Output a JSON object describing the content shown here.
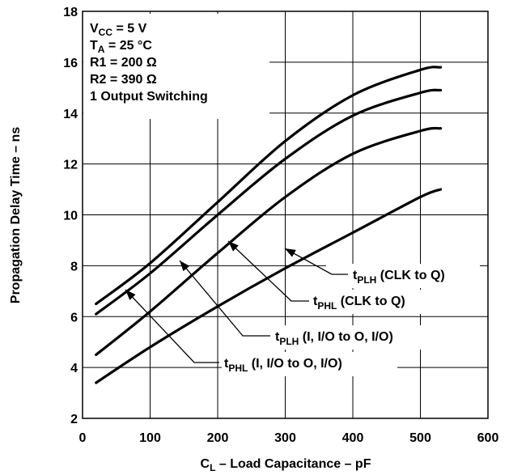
{
  "chart_data": {
    "type": "line",
    "xlabel": {
      "main": "C",
      "sub": "L",
      "rest": " – Load Capacitance – pF"
    },
    "ylabel": "Propagation Delay Time – ns",
    "xlim": [
      0,
      600
    ],
    "ylim": [
      2,
      18
    ],
    "xticks": [
      "0",
      "100",
      "200",
      "300",
      "400",
      "500",
      "600"
    ],
    "yticks": [
      "2",
      "4",
      "6",
      "8",
      "10",
      "12",
      "14",
      "16",
      "18"
    ],
    "grid": true,
    "conditions": [
      {
        "main": "V",
        "sub": "CC",
        "rest": " = 5 V"
      },
      {
        "main": "T",
        "sub": "A",
        "rest": " = 25 °C"
      },
      {
        "main": "R1 = 200 Ω",
        "sub": "",
        "rest": ""
      },
      {
        "main": "R2 = 390 Ω",
        "sub": "",
        "rest": ""
      },
      {
        "main": "1 Output Switching",
        "sub": "",
        "rest": ""
      }
    ],
    "series": [
      {
        "name": {
          "main": "t",
          "sub": "PLH",
          "rest": " (CLK to Q)"
        },
        "x": [
          20,
          100,
          200,
          300,
          400,
          500,
          530
        ],
        "y": [
          6.5,
          8.1,
          10.5,
          12.9,
          14.7,
          15.7,
          15.8
        ]
      },
      {
        "name": {
          "main": "t",
          "sub": "PHL",
          "rest": " (CLK to Q)"
        },
        "x": [
          20,
          100,
          200,
          300,
          400,
          500,
          530
        ],
        "y": [
          6.1,
          7.7,
          10.0,
          12.2,
          13.9,
          14.8,
          14.9
        ]
      },
      {
        "name": {
          "main": "t",
          "sub": "PLH",
          "rest": " (I, I/O to O, I/O)"
        },
        "x": [
          20,
          100,
          200,
          300,
          400,
          500,
          530
        ],
        "y": [
          4.5,
          6.2,
          8.5,
          10.7,
          12.4,
          13.3,
          13.4
        ]
      },
      {
        "name": {
          "main": "t",
          "sub": "PHL",
          "rest": " (I, I/O to O, I/O)"
        },
        "x": [
          20,
          100,
          200,
          300,
          400,
          500,
          530
        ],
        "y": [
          3.4,
          4.8,
          6.4,
          7.9,
          9.3,
          10.7,
          11.0
        ]
      }
    ]
  }
}
